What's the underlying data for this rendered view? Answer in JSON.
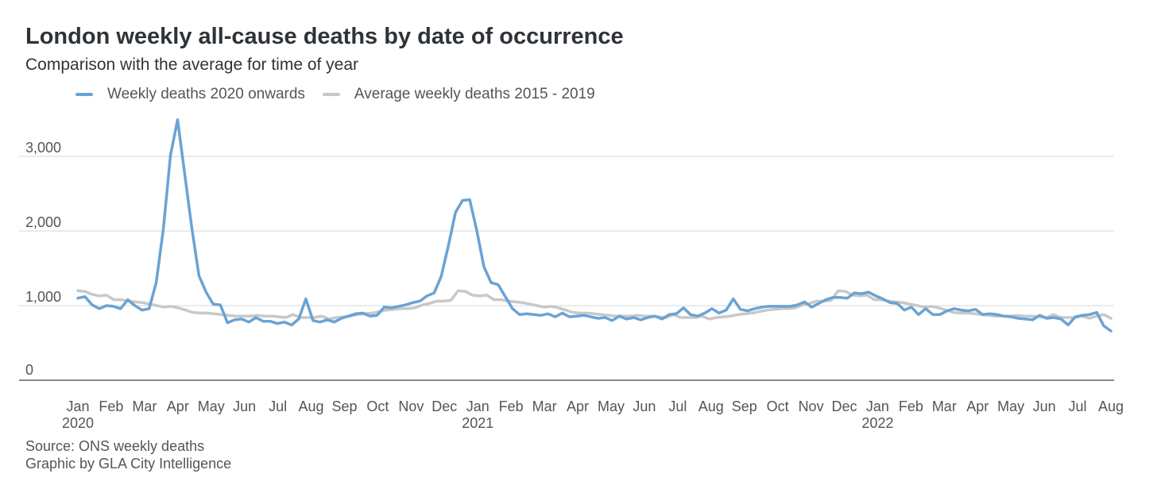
{
  "title": "London weekly all-cause deaths by date of occurrence",
  "subtitle": "Comparison with the average for time of year",
  "source": "Source: ONS weekly deaths",
  "credit": "Graphic by GLA City Intelligence",
  "chart_data": {
    "type": "line",
    "title": "London weekly all-cause deaths by date of occurrence",
    "subtitle": "Comparison with the average for time of year",
    "xlabel": "",
    "ylabel": "",
    "ylim": [
      0,
      3500
    ],
    "yticks": [
      {
        "value": 0,
        "label": "0"
      },
      {
        "value": 1000,
        "label": "1,000"
      },
      {
        "value": 2000,
        "label": "2,000"
      },
      {
        "value": 3000,
        "label": "3,000"
      }
    ],
    "xticks": [
      {
        "label": "Jan",
        "year": "2020"
      },
      {
        "label": "Feb"
      },
      {
        "label": "Mar"
      },
      {
        "label": "Apr"
      },
      {
        "label": "May"
      },
      {
        "label": "Jun"
      },
      {
        "label": "Jul"
      },
      {
        "label": "Aug"
      },
      {
        "label": "Sep"
      },
      {
        "label": "Oct"
      },
      {
        "label": "Nov"
      },
      {
        "label": "Dec"
      },
      {
        "label": "Jan",
        "year": "2021"
      },
      {
        "label": "Feb"
      },
      {
        "label": "Mar"
      },
      {
        "label": "Apr"
      },
      {
        "label": "May"
      },
      {
        "label": "Jun"
      },
      {
        "label": "Jul"
      },
      {
        "label": "Aug"
      },
      {
        "label": "Sep"
      },
      {
        "label": "Oct"
      },
      {
        "label": "Nov"
      },
      {
        "label": "Dec"
      },
      {
        "label": "Jan",
        "year": "2022"
      },
      {
        "label": "Feb"
      },
      {
        "label": "Mar"
      },
      {
        "label": "Apr"
      },
      {
        "label": "May"
      },
      {
        "label": "Jun"
      },
      {
        "label": "Jul"
      },
      {
        "label": "Aug"
      }
    ],
    "grid": true,
    "legend": "top",
    "series": [
      {
        "name": "Weekly deaths 2020 onwards",
        "color": "#6aa3d5",
        "values": [
          1100,
          1120,
          1010,
          960,
          1000,
          990,
          960,
          1080,
          1000,
          940,
          960,
          1310,
          2030,
          3020,
          3490,
          2760,
          2040,
          1400,
          1180,
          1020,
          1010,
          770,
          810,
          820,
          780,
          840,
          790,
          790,
          760,
          780,
          740,
          820,
          1090,
          800,
          780,
          810,
          780,
          830,
          860,
          890,
          900,
          860,
          870,
          980,
          970,
          990,
          1010,
          1040,
          1060,
          1130,
          1170,
          1390,
          1800,
          2250,
          2410,
          2420,
          2000,
          1520,
          1310,
          1280,
          1120,
          960,
          880,
          890,
          880,
          870,
          890,
          850,
          900,
          850,
          860,
          870,
          850,
          830,
          840,
          800,
          860,
          820,
          840,
          810,
          840,
          860,
          820,
          880,
          890,
          970,
          880,
          860,
          900,
          960,
          900,
          940,
          1090,
          950,
          930,
          960,
          980,
          990,
          990,
          990,
          990,
          1010,
          1050,
          980,
          1030,
          1080,
          1110,
          1110,
          1100,
          1170,
          1160,
          1180,
          1130,
          1090,
          1040,
          1030,
          940,
          980,
          880,
          960,
          880,
          880,
          930,
          960,
          940,
          930,
          950,
          880,
          890,
          880,
          860,
          850,
          830,
          820,
          810,
          870,
          830,
          840,
          820,
          740,
          850,
          870,
          880,
          910,
          730,
          660
        ]
      },
      {
        "name": "Average weekly deaths 2015 - 2019",
        "color": "#c8c8c8",
        "values": [
          1200,
          1190,
          1150,
          1130,
          1140,
          1080,
          1080,
          1060,
          1050,
          1040,
          1020,
          1000,
          980,
          990,
          970,
          940,
          910,
          900,
          900,
          890,
          880,
          870,
          860,
          860,
          860,
          870,
          860,
          860,
          850,
          840,
          880,
          840,
          840,
          840,
          860,
          820,
          840,
          850,
          860,
          880,
          890,
          900,
          920,
          940,
          950,
          960,
          960,
          970,
          1010,
          1030,
          1060,
          1060,
          1070,
          1200,
          1190,
          1140,
          1130,
          1140,
          1080,
          1080,
          1060,
          1050,
          1040,
          1020,
          1000,
          980,
          990,
          970,
          940,
          910,
          900,
          900,
          890,
          880,
          870,
          860,
          860,
          860,
          870,
          860,
          860,
          850,
          840,
          880,
          840,
          840,
          840,
          860,
          820,
          840,
          850,
          860,
          880,
          890,
          900,
          920,
          940,
          950,
          960,
          960,
          970,
          1010,
          1030,
          1060,
          1060,
          1070,
          1200,
          1190,
          1140,
          1130,
          1140,
          1080,
          1080,
          1060,
          1050,
          1040,
          1020,
          1000,
          980,
          990,
          970,
          940,
          910,
          900,
          900,
          890,
          880,
          870,
          860,
          860,
          860,
          870,
          860,
          860,
          850,
          840,
          880,
          840,
          840,
          840,
          860,
          830,
          860,
          880,
          830
        ]
      }
    ]
  }
}
